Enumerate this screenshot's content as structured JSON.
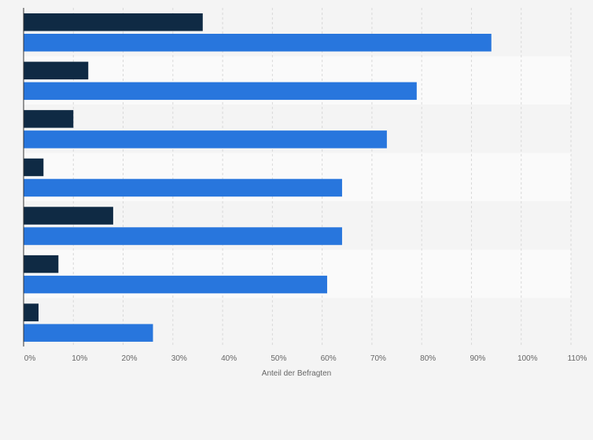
{
  "chart_data": {
    "type": "bar",
    "orientation": "horizontal",
    "categories": [
      "",
      "",
      "",
      "",
      "",
      "",
      ""
    ],
    "series": [
      {
        "values": [
          36,
          13,
          10,
          4,
          18,
          7,
          3
        ]
      },
      {
        "values": [
          94,
          79,
          73,
          64,
          64,
          61,
          26
        ]
      }
    ],
    "xlabel": "Anteil der Befragten",
    "xlim": [
      0,
      110
    ],
    "ticks": [
      "0%",
      "10%",
      "20%",
      "30%",
      "40%",
      "50%",
      "60%",
      "70%",
      "80%",
      "90%",
      "100%",
      "110%"
    ],
    "grid": true,
    "legend": "none",
    "colors": {
      "series_1": "#0f2a44",
      "series_2": "#2876dd",
      "band_even": "#f4f4f4",
      "band_odd": "#fafafa",
      "gridline": "#d9d9d9",
      "axis": "#333333"
    }
  }
}
